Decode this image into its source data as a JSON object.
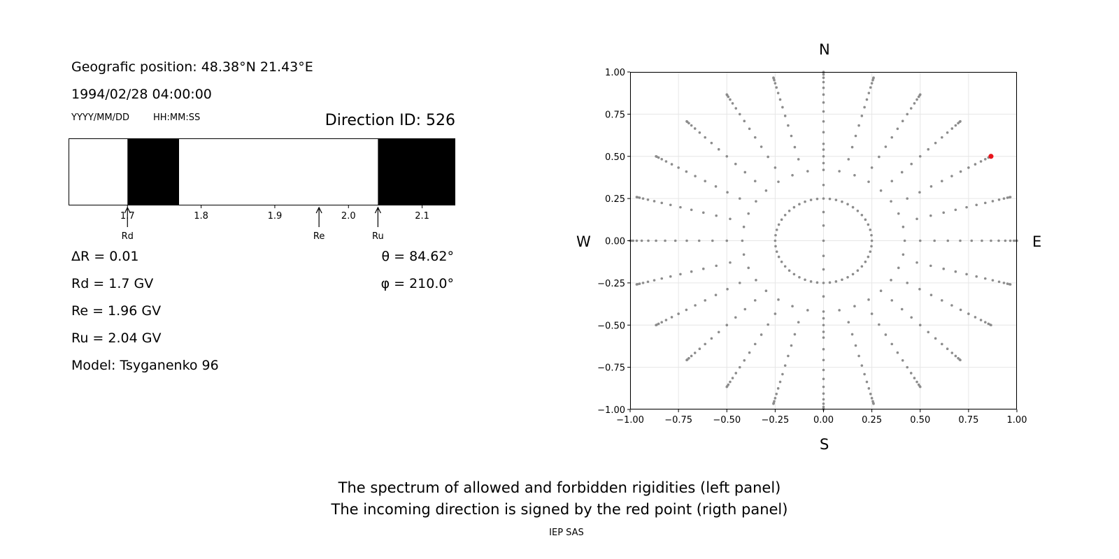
{
  "info": {
    "position": "Geografic position: 48.38°N 21.43°E",
    "datetime": "1994/02/28 04:00:00",
    "date_format": "YYYY/MM/DD",
    "time_format": "HH:MM:SS",
    "direction": "Direction ID: 526"
  },
  "params": {
    "delta_r": "ΔR = 0.01",
    "rd": "Rd = 1.7 GV",
    "re": "Re = 1.96 GV",
    "ru": "Ru = 2.04 GV",
    "model": "Model: Tsyganenko 96",
    "theta": "θ = 84.62°",
    "phi": "φ = 210.0°"
  },
  "compass": {
    "n": "N",
    "s": "S",
    "w": "W",
    "e": "E"
  },
  "caption": {
    "line1": "The spectrum of allowed and forbidden rigidities (left panel)",
    "line2": "The incoming direction is signed by the red point (rigth panel)",
    "credit": "IEP SAS"
  },
  "chart_data": [
    {
      "type": "bar",
      "description_role": "rigidity spectrum, black = forbidden, white = allowed",
      "xlim": [
        1.62,
        2.145
      ],
      "xticks": [
        1.7,
        1.8,
        1.9,
        2.0,
        2.1
      ],
      "xtick_labels": [
        "1.7",
        "1.8",
        "1.9",
        "2.0",
        "2.1"
      ],
      "forbidden_intervals": [
        [
          1.7,
          1.77
        ],
        [
          2.04,
          2.145
        ]
      ],
      "markers": [
        {
          "label": "Rd",
          "value": 1.7
        },
        {
          "label": "Re",
          "value": 1.96
        },
        {
          "label": "Ru",
          "value": 2.04
        }
      ],
      "colors": {
        "forbidden": "#000000",
        "allowed": "#ffffff"
      }
    },
    {
      "type": "scatter",
      "xlim": [
        -1,
        1
      ],
      "ylim": [
        -1,
        1
      ],
      "xticks": [
        -1.0,
        -0.75,
        -0.5,
        -0.25,
        0.0,
        0.25,
        0.5,
        0.75,
        1.0
      ],
      "yticks": [
        -1.0,
        -0.75,
        -0.5,
        -0.25,
        0.0,
        0.25,
        0.5,
        0.75,
        1.0
      ],
      "xtick_labels": [
        "−1.00",
        "−0.75",
        "−0.50",
        "−0.25",
        "0.00",
        "0.25",
        "0.50",
        "0.75",
        "1.00"
      ],
      "ytick_labels": [
        "−1.00",
        "−0.75",
        "−0.50",
        "−0.25",
        "0.00",
        "0.25",
        "0.50",
        "0.75",
        "1.00"
      ],
      "grid": true,
      "point_color": "#8c8c8c",
      "highlight_color": "#e8141c",
      "rings": [
        {
          "radius": 0.25,
          "spokes": 48
        },
        {
          "radius": 0.42,
          "spokes": 32
        },
        {
          "radius": 0.5,
          "spokes": 24
        },
        {
          "radius": 0.574,
          "spokes": 24
        },
        {
          "radius": 0.643,
          "spokes": 24
        },
        {
          "radius": 0.707,
          "spokes": 24
        },
        {
          "radius": 0.766,
          "spokes": 24
        },
        {
          "radius": 0.819,
          "spokes": 24
        },
        {
          "radius": 0.866,
          "spokes": 24
        },
        {
          "radius": 0.906,
          "spokes": 24
        },
        {
          "radius": 0.94,
          "spokes": 24
        },
        {
          "radius": 0.966,
          "spokes": 24
        },
        {
          "radius": 0.985,
          "spokes": 24
        },
        {
          "radius": 0.996,
          "spokes": 24
        },
        {
          "radius": 1.0,
          "spokes": 24
        }
      ],
      "extra_points": [
        {
          "x": 0,
          "y": 0
        },
        {
          "x": 0,
          "y": 0.09
        },
        {
          "x": 0,
          "y": 0.17
        },
        {
          "x": 0,
          "y": 0.33
        },
        {
          "x": 0,
          "y": 0.46
        },
        {
          "x": 0,
          "y": 0.54
        },
        {
          "x": 0,
          "y": -0.09
        },
        {
          "x": 0,
          "y": -0.17
        },
        {
          "x": 0,
          "y": -0.33
        },
        {
          "x": 0,
          "y": -0.46
        },
        {
          "x": 0,
          "y": -0.54
        }
      ],
      "highlight_point": {
        "x": 0.866,
        "y": 0.5
      }
    }
  ]
}
